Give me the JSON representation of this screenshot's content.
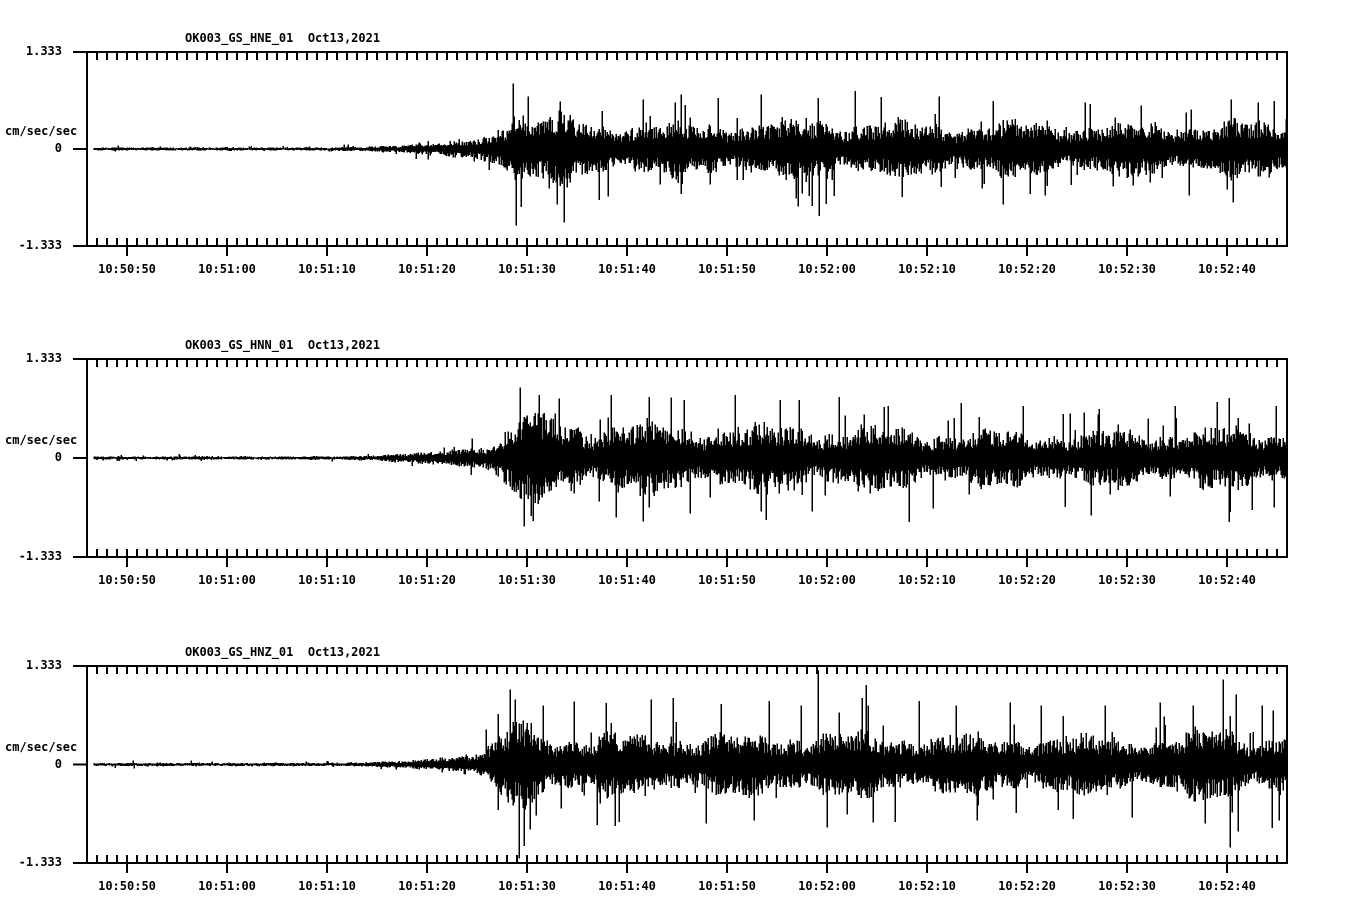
{
  "page": {
    "background": "#ffffff",
    "ink": "#000000"
  },
  "chart_data": [
    {
      "type": "line",
      "subtype": "seismogram",
      "title": "OK003_GS_HNE_01  Oct13,2021",
      "station_channel": "OK003_GS_HNE_01",
      "date": "Oct13,2021",
      "ylabel": "cm/sec/sec",
      "ylim": [
        -1.333,
        1.333
      ],
      "ytick_labels": [
        "1.333",
        "0",
        "-1.333"
      ],
      "ytick_values": [
        1.333,
        0,
        -1.333
      ],
      "xtick_labels": [
        "10:50:50",
        "10:51:00",
        "10:51:10",
        "10:51:20",
        "10:51:30",
        "10:51:40",
        "10:51:50",
        "10:52:00",
        "10:52:10",
        "10:52:20",
        "10:52:30",
        "10:52:40"
      ],
      "xtick_seconds": [
        4,
        14,
        24,
        34,
        44,
        54,
        64,
        74,
        84,
        94,
        104,
        114
      ],
      "x_minor_tick_interval_s": 1,
      "x_major_tick_interval_s": 10,
      "duration_s": 120,
      "grid": false,
      "legend": false,
      "envelope_t_amp": [
        [
          0,
          0.03
        ],
        [
          24,
          0.03
        ],
        [
          28,
          0.045
        ],
        [
          31,
          0.07
        ],
        [
          34,
          0.1
        ],
        [
          37,
          0.14
        ],
        [
          39,
          0.2
        ],
        [
          41,
          0.3
        ],
        [
          42,
          0.6
        ],
        [
          42.8,
          0.85
        ],
        [
          43.6,
          0.6
        ],
        [
          45,
          0.52
        ],
        [
          47,
          0.6
        ],
        [
          49,
          0.52
        ],
        [
          52,
          0.46
        ],
        [
          56,
          0.42
        ],
        [
          60,
          0.44
        ],
        [
          64,
          0.46
        ],
        [
          68,
          0.44
        ],
        [
          73,
          0.5
        ],
        [
          78,
          0.46
        ],
        [
          83,
          0.44
        ],
        [
          88,
          0.42
        ],
        [
          93,
          0.44
        ],
        [
          98,
          0.42
        ],
        [
          103,
          0.44
        ],
        [
          108,
          0.42
        ],
        [
          113,
          0.46
        ],
        [
          117,
          0.44
        ],
        [
          120,
          0.46
        ]
      ],
      "spikes_t_amp": [
        [
          42.6,
          0.9
        ],
        [
          42.9,
          -1.05
        ],
        [
          43.4,
          -0.8
        ],
        [
          44.1,
          0.72
        ],
        [
          47.3,
          0.65
        ],
        [
          51.2,
          -0.7
        ],
        [
          55.6,
          0.68
        ],
        [
          59.4,
          -0.62
        ],
        [
          63.1,
          0.7
        ],
        [
          67.4,
          0.75
        ],
        [
          70.9,
          -0.68
        ],
        [
          73.1,
          0.7
        ],
        [
          73.2,
          -0.92
        ],
        [
          76.8,
          0.8
        ],
        [
          81.5,
          -0.66
        ],
        [
          85.2,
          0.72
        ],
        [
          90.6,
          0.66
        ],
        [
          94.3,
          -0.62
        ],
        [
          99.8,
          0.64
        ],
        [
          105.4,
          0.6
        ],
        [
          110.2,
          -0.64
        ],
        [
          114.4,
          0.68
        ],
        [
          118.7,
          0.66
        ]
      ]
    },
    {
      "type": "line",
      "subtype": "seismogram",
      "title": "OK003_GS_HNN_01  Oct13,2021",
      "station_channel": "OK003_GS_HNN_01",
      "date": "Oct13,2021",
      "ylabel": "cm/sec/sec",
      "ylim": [
        -1.333,
        1.333
      ],
      "ytick_labels": [
        "1.333",
        "0",
        "-1.333"
      ],
      "ytick_values": [
        1.333,
        0,
        -1.333
      ],
      "xtick_labels": [
        "10:50:50",
        "10:51:00",
        "10:51:10",
        "10:51:20",
        "10:51:30",
        "10:51:40",
        "10:51:50",
        "10:52:00",
        "10:52:10",
        "10:52:20",
        "10:52:30",
        "10:52:40"
      ],
      "xtick_seconds": [
        4,
        14,
        24,
        34,
        44,
        54,
        64,
        74,
        84,
        94,
        104,
        114
      ],
      "x_minor_tick_interval_s": 1,
      "x_major_tick_interval_s": 10,
      "duration_s": 120,
      "grid": false,
      "legend": false,
      "envelope_t_amp": [
        [
          0,
          0.03
        ],
        [
          25,
          0.03
        ],
        [
          29,
          0.05
        ],
        [
          32,
          0.08
        ],
        [
          35,
          0.12
        ],
        [
          38,
          0.17
        ],
        [
          40,
          0.24
        ],
        [
          41.5,
          0.38
        ],
        [
          42.5,
          0.62
        ],
        [
          43.3,
          0.75
        ],
        [
          44.5,
          0.62
        ],
        [
          46,
          0.68
        ],
        [
          48,
          0.58
        ],
        [
          51,
          0.54
        ],
        [
          54,
          0.6
        ],
        [
          57,
          0.54
        ],
        [
          60,
          0.5
        ],
        [
          63,
          0.56
        ],
        [
          66,
          0.5
        ],
        [
          70,
          0.55
        ],
        [
          74,
          0.5
        ],
        [
          78,
          0.5
        ],
        [
          82,
          0.47
        ],
        [
          86,
          0.45
        ],
        [
          90,
          0.43
        ],
        [
          95,
          0.45
        ],
        [
          100,
          0.42
        ],
        [
          105,
          0.43
        ],
        [
          110,
          0.45
        ],
        [
          114,
          0.5
        ],
        [
          117,
          0.46
        ],
        [
          120,
          0.45
        ]
      ],
      "spikes_t_amp": [
        [
          43.3,
          0.95
        ],
        [
          43.7,
          -0.92
        ],
        [
          44.6,
          -0.85
        ],
        [
          45.2,
          0.85
        ],
        [
          47.2,
          0.8
        ],
        [
          52.4,
          0.85
        ],
        [
          52.9,
          -0.8
        ],
        [
          56.2,
          0.82
        ],
        [
          59.7,
          0.78
        ],
        [
          60.3,
          -0.75
        ],
        [
          64.8,
          0.85
        ],
        [
          69.3,
          0.78
        ],
        [
          72.5,
          -0.72
        ],
        [
          75.2,
          0.82
        ],
        [
          80.1,
          0.7
        ],
        [
          84.6,
          -0.68
        ],
        [
          87.4,
          0.74
        ],
        [
          93.6,
          0.7
        ],
        [
          97.8,
          -0.66
        ],
        [
          101.2,
          0.66
        ],
        [
          108.8,
          0.7
        ],
        [
          114.2,
          0.78
        ],
        [
          116.5,
          -0.7
        ],
        [
          118.9,
          0.7
        ]
      ]
    },
    {
      "type": "line",
      "subtype": "seismogram",
      "title": "OK003_GS_HNZ_01  Oct13,2021",
      "station_channel": "OK003_GS_HNZ_01",
      "date": "Oct13,2021",
      "ylabel": "cm/sec/sec",
      "ylim": [
        -1.333,
        1.333
      ],
      "ytick_labels": [
        "1.333",
        "0",
        "-1.333"
      ],
      "ytick_values": [
        1.333,
        0,
        -1.333
      ],
      "xtick_labels": [
        "10:50:50",
        "10:51:00",
        "10:51:10",
        "10:51:20",
        "10:51:30",
        "10:51:40",
        "10:51:50",
        "10:52:00",
        "10:52:10",
        "10:52:20",
        "10:52:30",
        "10:52:40"
      ],
      "xtick_seconds": [
        4,
        14,
        24,
        34,
        44,
        54,
        64,
        74,
        84,
        94,
        104,
        114
      ],
      "x_minor_tick_interval_s": 1,
      "x_major_tick_interval_s": 10,
      "duration_s": 120,
      "grid": false,
      "legend": false,
      "envelope_t_amp": [
        [
          0,
          0.03
        ],
        [
          26,
          0.032
        ],
        [
          30,
          0.05
        ],
        [
          33,
          0.08
        ],
        [
          35,
          0.11
        ],
        [
          37,
          0.15
        ],
        [
          39,
          0.22
        ],
        [
          41,
          0.38
        ],
        [
          42.3,
          0.65
        ],
        [
          43.2,
          0.8
        ],
        [
          44.5,
          0.62
        ],
        [
          46,
          0.52
        ],
        [
          49,
          0.47
        ],
        [
          53,
          0.5
        ],
        [
          57,
          0.47
        ],
        [
          61,
          0.5
        ],
        [
          65,
          0.48
        ],
        [
          69,
          0.5
        ],
        [
          73,
          0.53
        ],
        [
          77,
          0.5
        ],
        [
          81,
          0.48
        ],
        [
          85,
          0.5
        ],
        [
          89,
          0.46
        ],
        [
          93,
          0.48
        ],
        [
          97,
          0.46
        ],
        [
          101,
          0.45
        ],
        [
          105,
          0.46
        ],
        [
          109,
          0.5
        ],
        [
          112,
          0.55
        ],
        [
          113.8,
          0.66
        ],
        [
          115.2,
          0.52
        ],
        [
          117,
          0.48
        ],
        [
          120,
          0.5
        ]
      ],
      "spikes_t_amp": [
        [
          42.8,
          0.88
        ],
        [
          43.2,
          -1.27
        ],
        [
          43.7,
          -1.1
        ],
        [
          44.3,
          -0.88
        ],
        [
          45.6,
          0.8
        ],
        [
          48.7,
          0.85
        ],
        [
          51.0,
          -0.82
        ],
        [
          53.2,
          -0.78
        ],
        [
          56.4,
          0.88
        ],
        [
          58.6,
          0.9
        ],
        [
          61.9,
          -0.8
        ],
        [
          63.4,
          0.82
        ],
        [
          66.7,
          -0.76
        ],
        [
          68.2,
          0.86
        ],
        [
          71.4,
          0.8
        ],
        [
          73.1,
          1.28
        ],
        [
          74.0,
          -0.85
        ],
        [
          77.5,
          0.9
        ],
        [
          80.8,
          -0.78
        ],
        [
          83.2,
          0.86
        ],
        [
          86.9,
          0.8
        ],
        [
          89.0,
          -0.76
        ],
        [
          92.3,
          0.84
        ],
        [
          95.4,
          0.8
        ],
        [
          98.6,
          -0.74
        ],
        [
          101.8,
          0.8
        ],
        [
          104.5,
          -0.72
        ],
        [
          107.3,
          0.84
        ],
        [
          110.6,
          0.8
        ],
        [
          113.6,
          1.15
        ],
        [
          114.3,
          -1.12
        ],
        [
          114.9,
          0.95
        ],
        [
          117.5,
          0.8
        ],
        [
          119.2,
          -0.76
        ]
      ]
    }
  ]
}
